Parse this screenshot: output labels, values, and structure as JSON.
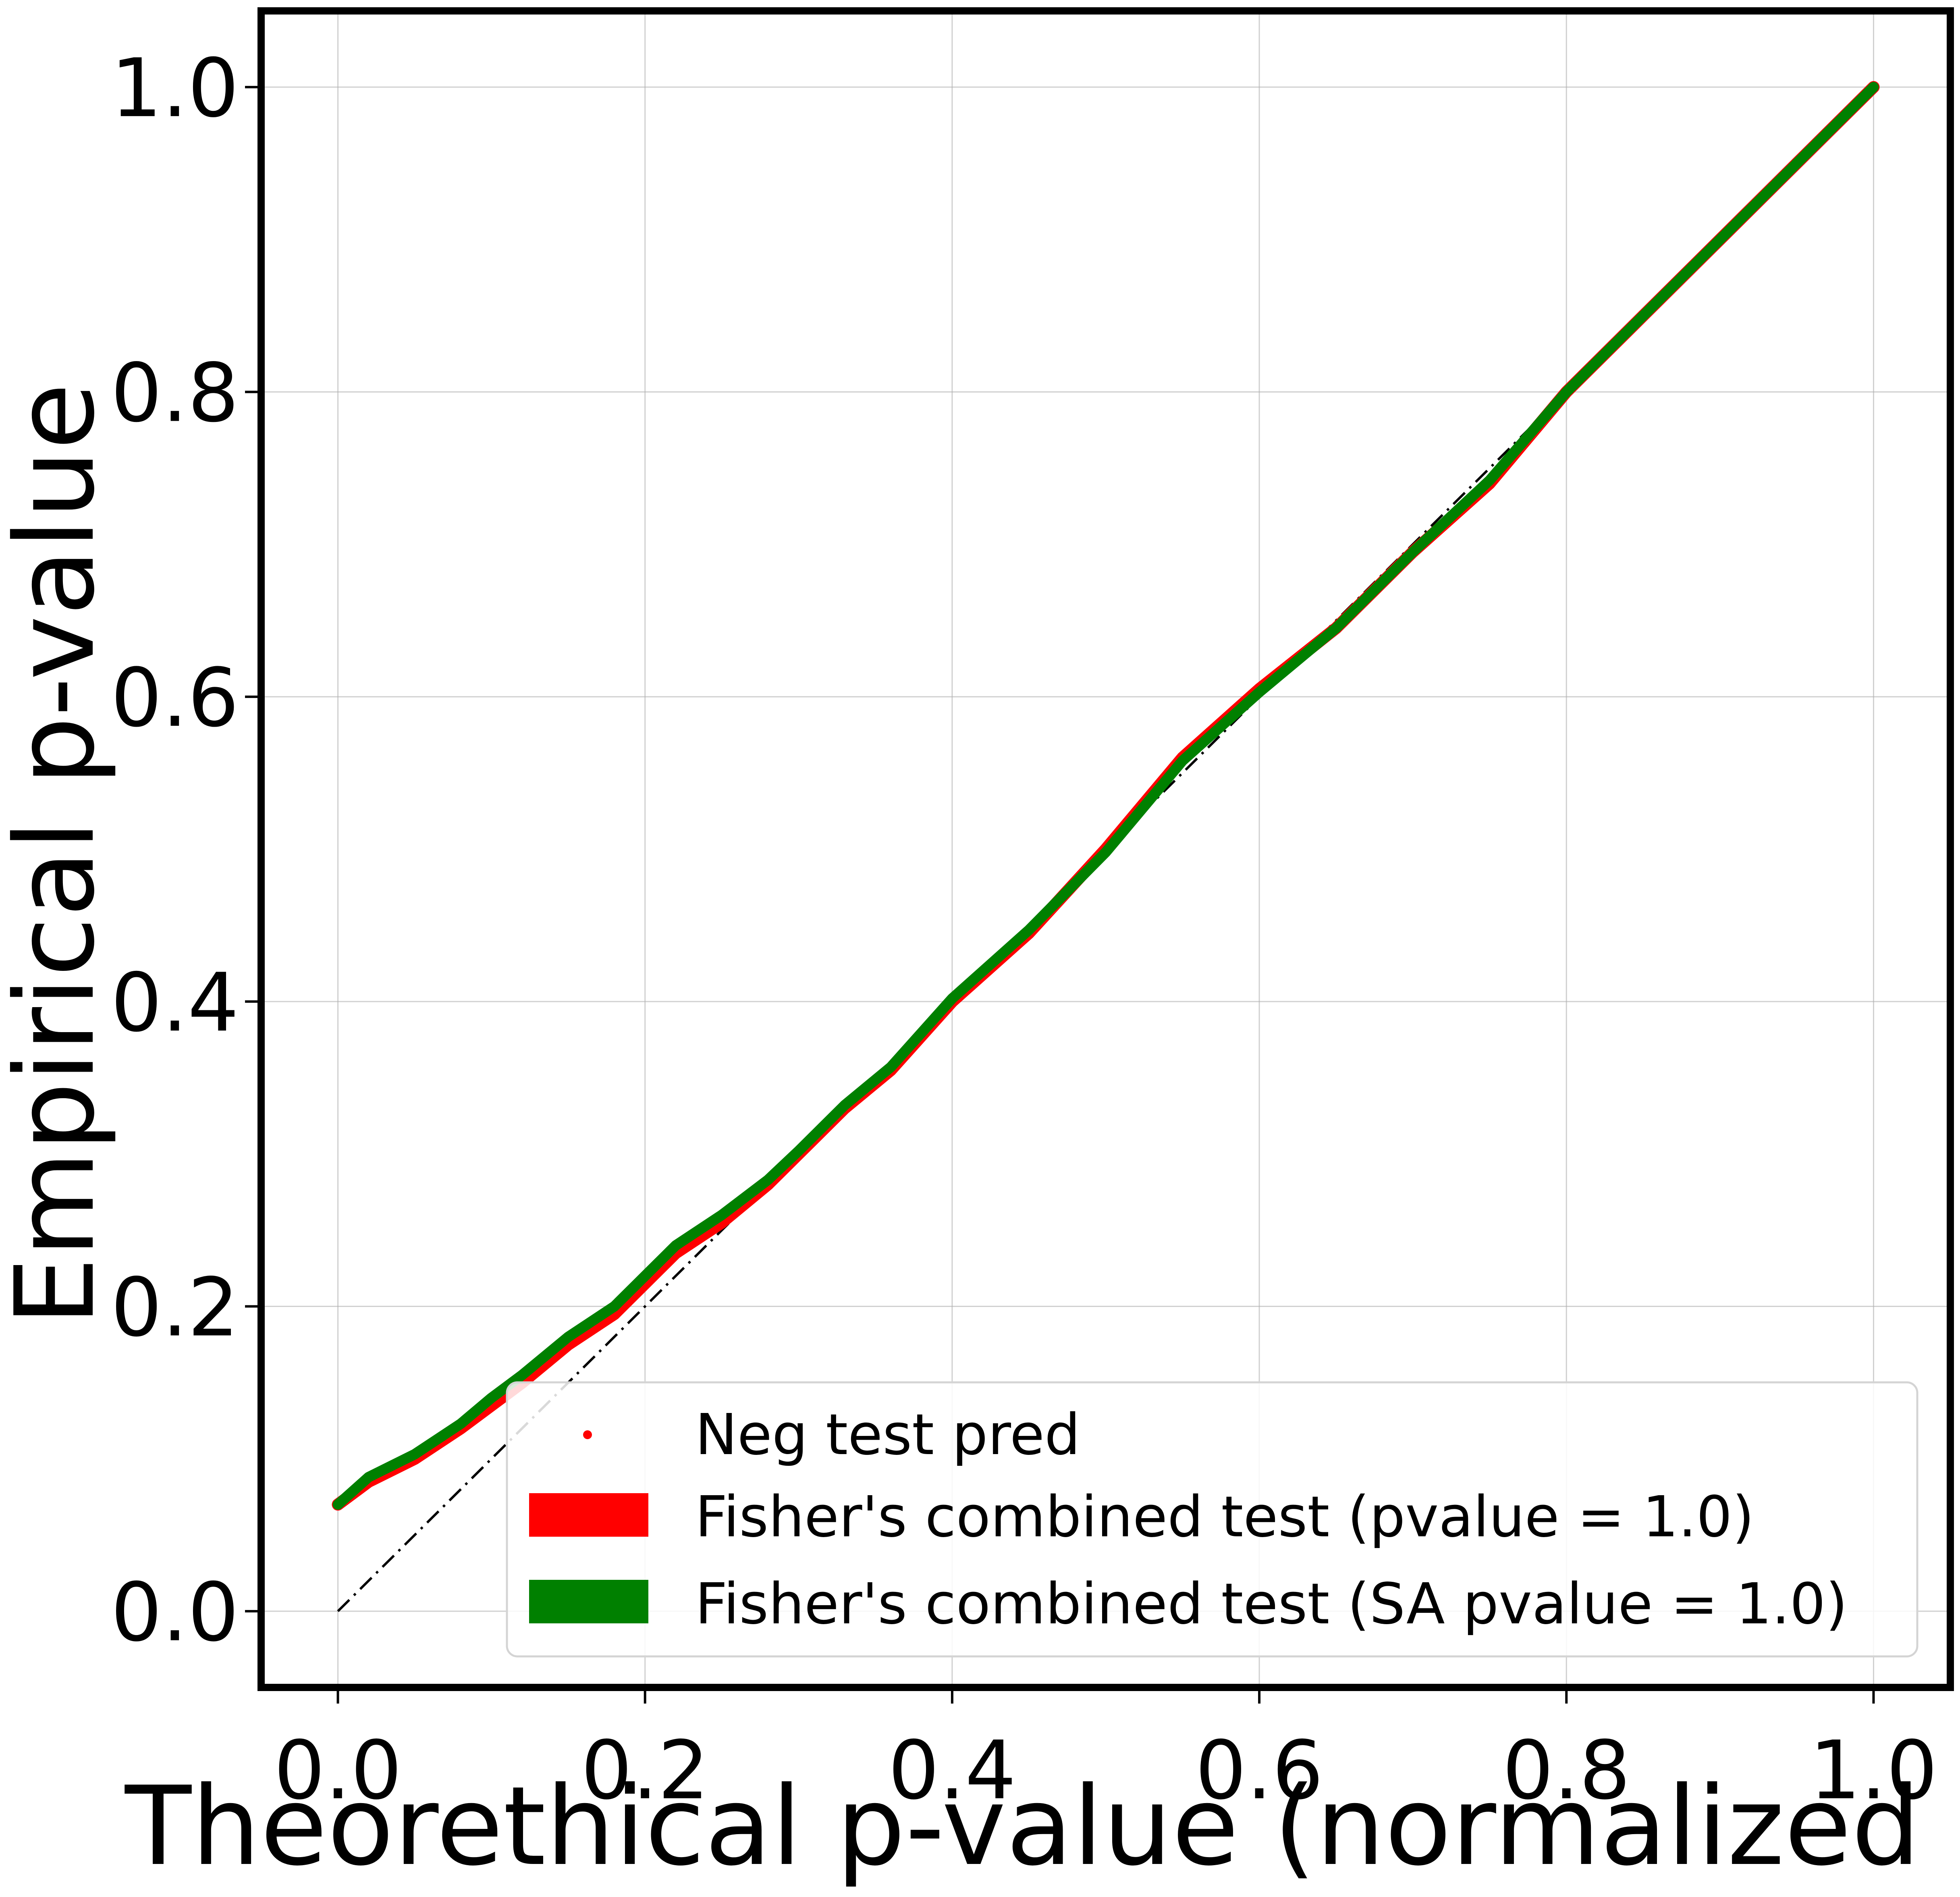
{
  "chart_data": {
    "type": "line",
    "title": "",
    "xlabel": "Theorethical p-value (normalized rar",
    "ylabel": "Empirical p-value",
    "xlim": [
      -0.05,
      1.05
    ],
    "ylim": [
      -0.05,
      1.05
    ],
    "xticks": [
      0.0,
      0.2,
      0.4,
      0.6,
      0.8,
      1.0
    ],
    "yticks": [
      0.0,
      0.2,
      0.4,
      0.6,
      0.8,
      1.0
    ],
    "xtick_labels": [
      "0.0",
      "0.2",
      "0.4",
      "0.6",
      "0.8",
      "1.0"
    ],
    "ytick_labels": [
      "0.0",
      "0.2",
      "0.4",
      "0.6",
      "0.8",
      "1.0"
    ],
    "grid": true,
    "legend_position": "bottom-right",
    "legend_entries": [
      "Neg test pred",
      "Fisher's combined test (pvalue = 1.0)",
      "Fisher's combined test (SA pvalue = 1.0)"
    ],
    "series": [
      {
        "name": "Neg test pred",
        "kind": "scatter",
        "color": "#ff0000",
        "x": [
          0.0,
          0.02,
          0.05,
          0.08,
          0.1,
          0.12,
          0.15,
          0.18,
          0.2,
          0.22,
          0.25,
          0.28,
          0.3,
          0.33,
          0.36,
          0.4,
          0.45,
          0.5,
          0.55,
          0.6,
          0.65,
          0.7,
          0.75,
          0.8,
          0.85,
          0.9,
          0.95,
          1.0
        ],
        "y": [
          0.07,
          0.085,
          0.1,
          0.12,
          0.135,
          0.15,
          0.175,
          0.195,
          0.215,
          0.235,
          0.255,
          0.28,
          0.3,
          0.33,
          0.355,
          0.4,
          0.445,
          0.5,
          0.56,
          0.605,
          0.645,
          0.695,
          0.74,
          0.8,
          0.85,
          0.9,
          0.95,
          1.0
        ]
      },
      {
        "name": "Fisher's combined test (pvalue = 1.0)",
        "kind": "line",
        "color": "#ff0000",
        "x": [
          0.0,
          0.02,
          0.05,
          0.08,
          0.1,
          0.12,
          0.15,
          0.18,
          0.2,
          0.22,
          0.25,
          0.28,
          0.3,
          0.33,
          0.36,
          0.4,
          0.45,
          0.5,
          0.55,
          0.6,
          0.65,
          0.7,
          0.75,
          0.8,
          0.85,
          0.9,
          0.95,
          1.0
        ],
        "y": [
          0.07,
          0.085,
          0.1,
          0.12,
          0.135,
          0.15,
          0.175,
          0.195,
          0.215,
          0.235,
          0.255,
          0.28,
          0.3,
          0.33,
          0.355,
          0.4,
          0.445,
          0.5,
          0.56,
          0.605,
          0.645,
          0.695,
          0.74,
          0.8,
          0.85,
          0.9,
          0.95,
          1.0
        ]
      },
      {
        "name": "Fisher's combined test (SA pvalue = 1.0)",
        "kind": "line",
        "color": "#008000",
        "x": [
          0.0,
          0.02,
          0.05,
          0.08,
          0.1,
          0.12,
          0.15,
          0.18,
          0.2,
          0.22,
          0.25,
          0.28,
          0.3,
          0.33,
          0.36,
          0.4,
          0.45,
          0.5,
          0.55,
          0.6,
          0.65,
          0.7,
          0.75,
          0.8,
          0.85,
          0.9,
          0.95,
          1.0
        ],
        "y": [
          0.07,
          0.088,
          0.103,
          0.123,
          0.14,
          0.155,
          0.18,
          0.2,
          0.22,
          0.24,
          0.26,
          0.283,
          0.302,
          0.332,
          0.357,
          0.402,
          0.447,
          0.498,
          0.558,
          0.603,
          0.645,
          0.695,
          0.742,
          0.8,
          0.85,
          0.9,
          0.95,
          1.0
        ]
      },
      {
        "name": "",
        "kind": "reference",
        "color": "#000000",
        "x": [
          0.0,
          1.0
        ],
        "y": [
          0.0,
          1.0
        ]
      }
    ]
  }
}
